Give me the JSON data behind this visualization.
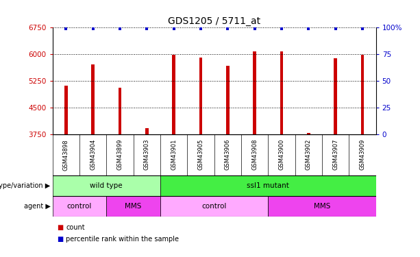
{
  "title": "GDS1205 / 5711_at",
  "samples": [
    "GSM43898",
    "GSM43904",
    "GSM43899",
    "GSM43903",
    "GSM43901",
    "GSM43905",
    "GSM43906",
    "GSM43908",
    "GSM43900",
    "GSM43902",
    "GSM43907",
    "GSM43909"
  ],
  "counts": [
    5120,
    5720,
    5060,
    3920,
    5980,
    5910,
    5680,
    6080,
    6070,
    3780,
    5890,
    5990
  ],
  "percentile_ranks": [
    99,
    99,
    99,
    99,
    99,
    99,
    99,
    99,
    99,
    99,
    99,
    99
  ],
  "bar_color": "#cc0000",
  "dot_color": "#0000cc",
  "ylim_left": [
    3750,
    6750
  ],
  "ylim_right": [
    0,
    100
  ],
  "yticks_left": [
    3750,
    4500,
    5250,
    6000,
    6750
  ],
  "yticks_right": [
    0,
    25,
    50,
    75,
    100
  ],
  "grid_color": "black",
  "genotype_groups": [
    {
      "label": "wild type",
      "start": 0,
      "end": 4,
      "color": "#aaffaa"
    },
    {
      "label": "ssl1 mutant",
      "start": 4,
      "end": 12,
      "color": "#44ee44"
    }
  ],
  "agent_groups": [
    {
      "label": "control",
      "start": 0,
      "end": 2,
      "color": "#ffaaff"
    },
    {
      "label": "MMS",
      "start": 2,
      "end": 4,
      "color": "#ee44ee"
    },
    {
      "label": "control",
      "start": 4,
      "end": 8,
      "color": "#ffaaff"
    },
    {
      "label": "MMS",
      "start": 8,
      "end": 12,
      "color": "#ee44ee"
    }
  ],
  "row_label_genotype": "genotype/variation",
  "row_label_agent": "agent",
  "legend_count_label": "count",
  "legend_pct_label": "percentile rank within the sample",
  "bg_color": "#ffffff",
  "tick_label_color_left": "#cc0000",
  "tick_label_color_right": "#0000cc",
  "sample_cell_color": "#cccccc",
  "bar_width": 0.12
}
